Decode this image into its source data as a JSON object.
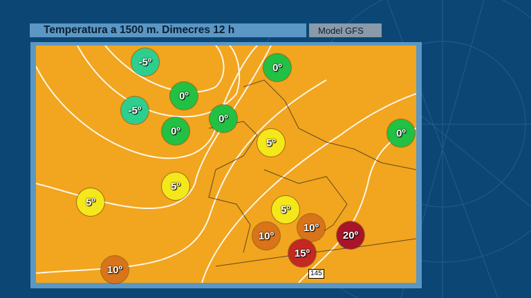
{
  "header": {
    "title": "Temperatura a 1500 m.  Dimecres 12 h",
    "model": "Model GFS"
  },
  "colors": {
    "background": "#0b4675",
    "frame": "#5b97c4",
    "cold": "#2dcf8f",
    "zero": "#22c043",
    "five": "#f5e81a",
    "ten": "#d9741a",
    "fifteen": "#c42822",
    "twenty": "#a8142a"
  },
  "labels": [
    {
      "text": "-5º",
      "level": "cold"
    },
    {
      "text": "0º",
      "level": "zero"
    },
    {
      "text": "-5º",
      "level": "cold"
    },
    {
      "text": "0º",
      "level": "zero"
    },
    {
      "text": "0º",
      "level": "zero"
    },
    {
      "text": "0º",
      "level": "zero"
    },
    {
      "text": "0º",
      "level": "zero"
    },
    {
      "text": "5º",
      "level": "five"
    },
    {
      "text": "5º",
      "level": "five"
    },
    {
      "text": "5º",
      "level": "five"
    },
    {
      "text": "5º",
      "level": "five"
    },
    {
      "text": "10º",
      "level": "ten"
    },
    {
      "text": "10º",
      "level": "ten"
    },
    {
      "text": "10º",
      "level": "ten"
    },
    {
      "text": "15º",
      "level": "fifteen"
    },
    {
      "text": "20º",
      "level": "twenty"
    }
  ],
  "isobar_label": "145"
}
